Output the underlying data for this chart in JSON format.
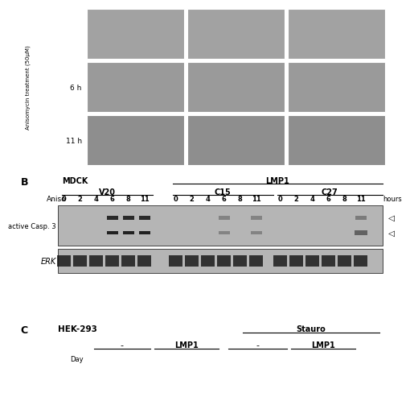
{
  "bg_color": "#ffffff",
  "panel_B_label": "B",
  "panel_C_label": "C",
  "mdck_label": "MDCK",
  "lmp1_label": "LMP1",
  "v20_label": "V20",
  "c15_label": "C15",
  "c27_label": "C27",
  "aniso_label": "Aniso",
  "hours_label": "hours",
  "time_points": [
    "0",
    "2",
    "4",
    "6",
    "8",
    "11"
  ],
  "active_casp3_label": "active Casp. 3",
  "erk_label": "ERK",
  "hek293_label": "HEK-293",
  "stauro_label": "Stauro",
  "minus_label": "•",
  "lmp1_c_label": "LMP1",
  "minus2_label": "•",
  "lmp1_c2_label": "LMP1",
  "anisomycin_label": "Anisomycin treatment (50μM)",
  "6h_label": "6 h",
  "11h_label": "11 h",
  "day_label": "Day",
  "micro_bg_row0": "#a0a0a0",
  "micro_bg_row1": "#989898",
  "micro_bg_row2": "#909090"
}
